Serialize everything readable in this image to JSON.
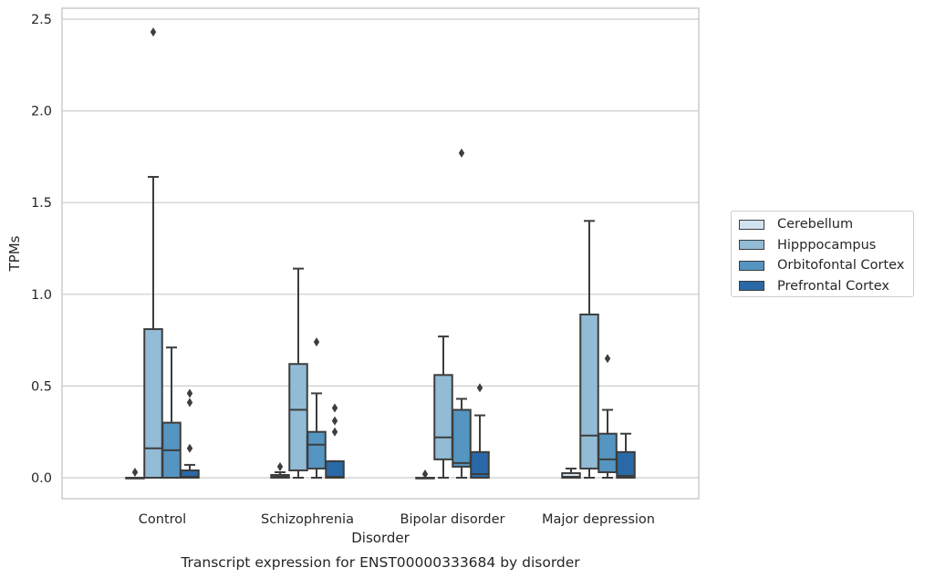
{
  "chart_data": {
    "type": "box",
    "title": "Transcript expression for ENST00000333684 by disorder",
    "xlabel": "Disorder",
    "ylabel": "TPMs",
    "categories": [
      "Control",
      "Schizophrenia",
      "Bipolar disorder",
      "Major depression"
    ],
    "ylim": [
      -0.12,
      2.55
    ],
    "yticks": [
      "0.0",
      "0.5",
      "1.0",
      "1.5",
      "2.0",
      "2.5"
    ],
    "ytick_values": [
      0,
      0.5,
      1.0,
      1.5,
      2.0,
      2.5
    ],
    "grid": true,
    "legend_position": "right",
    "series": [
      {
        "name": "Cerebellum",
        "color": "#d4e2f0",
        "boxes": [
          {
            "q1": 0,
            "median": 0,
            "q3": 0,
            "whisker_low": 0,
            "whisker_high": 0,
            "outliers": [
              0.03
            ]
          },
          {
            "q1": 0,
            "median": 0.005,
            "q3": 0.015,
            "whisker_low": 0,
            "whisker_high": 0.03,
            "outliers": [
              0.06
            ]
          },
          {
            "q1": 0,
            "median": 0,
            "q3": 0,
            "whisker_low": 0,
            "whisker_high": 0,
            "outliers": [
              0.02
            ]
          },
          {
            "q1": 0,
            "median": 0.005,
            "q3": 0.025,
            "whisker_low": 0,
            "whisker_high": 0.05,
            "outliers": []
          }
        ]
      },
      {
        "name": "Hipppocampus",
        "color": "#92bbd6",
        "boxes": [
          {
            "q1": 0,
            "median": 0.16,
            "q3": 0.81,
            "whisker_low": 0,
            "whisker_high": 1.64,
            "outliers": [
              2.43
            ]
          },
          {
            "q1": 0.04,
            "median": 0.37,
            "q3": 0.62,
            "whisker_low": 0,
            "whisker_high": 1.14,
            "outliers": []
          },
          {
            "q1": 0.1,
            "median": 0.22,
            "q3": 0.56,
            "whisker_low": 0,
            "whisker_high": 0.77,
            "outliers": []
          },
          {
            "q1": 0.05,
            "median": 0.23,
            "q3": 0.89,
            "whisker_low": 0,
            "whisker_high": 1.4,
            "outliers": []
          }
        ]
      },
      {
        "name": "Orbitofontal Cortex",
        "color": "#5495c1",
        "boxes": [
          {
            "q1": 0,
            "median": 0.15,
            "q3": 0.3,
            "whisker_low": 0,
            "whisker_high": 0.71,
            "outliers": []
          },
          {
            "q1": 0.05,
            "median": 0.18,
            "q3": 0.25,
            "whisker_low": 0,
            "whisker_high": 0.46,
            "outliers": [
              0.74
            ]
          },
          {
            "q1": 0.06,
            "median": 0.08,
            "q3": 0.37,
            "whisker_low": 0,
            "whisker_high": 0.43,
            "outliers": [
              1.77
            ]
          },
          {
            "q1": 0.03,
            "median": 0.1,
            "q3": 0.24,
            "whisker_low": 0,
            "whisker_high": 0.37,
            "outliers": [
              0.65
            ]
          }
        ]
      },
      {
        "name": "Prefrontal Cortex",
        "color": "#2a69a7",
        "boxes": [
          {
            "q1": 0,
            "median": 0.005,
            "q3": 0.04,
            "whisker_low": 0,
            "whisker_high": 0.07,
            "outliers": [
              0.16,
              0.41,
              0.46
            ]
          },
          {
            "q1": 0,
            "median": 0.005,
            "q3": 0.09,
            "whisker_low": 0,
            "whisker_high": 0.09,
            "outliers": [
              0.25,
              0.31,
              0.38
            ]
          },
          {
            "q1": 0,
            "median": 0.02,
            "q3": 0.14,
            "whisker_low": 0,
            "whisker_high": 0.34,
            "outliers": [
              0.49
            ]
          },
          {
            "q1": 0,
            "median": 0.01,
            "q3": 0.14,
            "whisker_low": 0,
            "whisker_high": 0.24,
            "outliers": []
          }
        ]
      }
    ]
  }
}
